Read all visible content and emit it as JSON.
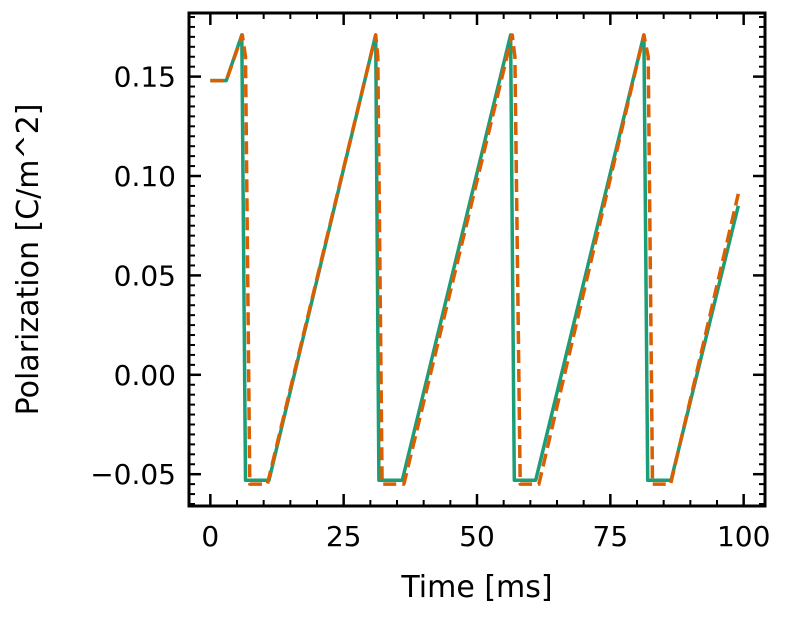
{
  "chart_data": {
    "type": "line",
    "xlabel": "Time [ms]",
    "ylabel": "Polarization [C/m^2]",
    "xlim": [
      -4,
      104
    ],
    "ylim": [
      -0.066,
      0.182
    ],
    "x_ticks": [
      0,
      25,
      50,
      75,
      100
    ],
    "x_tick_labels": [
      "0",
      "25",
      "50",
      "75",
      "100"
    ],
    "y_ticks": [
      -0.05,
      0.0,
      0.05,
      0.1,
      0.15
    ],
    "y_tick_labels": [
      "−0.05",
      "0.00",
      "0.05",
      "0.10",
      "0.15"
    ],
    "grid": false,
    "legend": false,
    "series": [
      {
        "color": "#1b9e77",
        "dash": "solid",
        "x": [
          0,
          3,
          5.9,
          6.6,
          11,
          31,
          31.6,
          36,
          56.3,
          57,
          61,
          81.3,
          82,
          86.4,
          99
        ],
        "y": [
          0.148,
          0.148,
          0.171,
          -0.053,
          -0.053,
          0.171,
          -0.053,
          -0.053,
          0.171,
          -0.053,
          -0.053,
          0.171,
          -0.053,
          -0.053,
          0.085
        ]
      },
      {
        "color": "#d95f02",
        "dash": "dashed",
        "x": [
          0,
          3,
          6,
          6.6,
          7.4,
          10.7,
          31,
          31.4,
          32.2,
          36.3,
          56.6,
          57.1,
          58.1,
          61.6,
          81.3,
          82.1,
          82.9,
          86.3,
          99
        ],
        "y": [
          0.148,
          0.148,
          0.171,
          0.16,
          -0.055,
          -0.055,
          0.171,
          0.16,
          -0.055,
          -0.055,
          0.171,
          0.16,
          -0.055,
          -0.055,
          0.171,
          0.16,
          -0.055,
          -0.055,
          0.091
        ]
      }
    ]
  }
}
